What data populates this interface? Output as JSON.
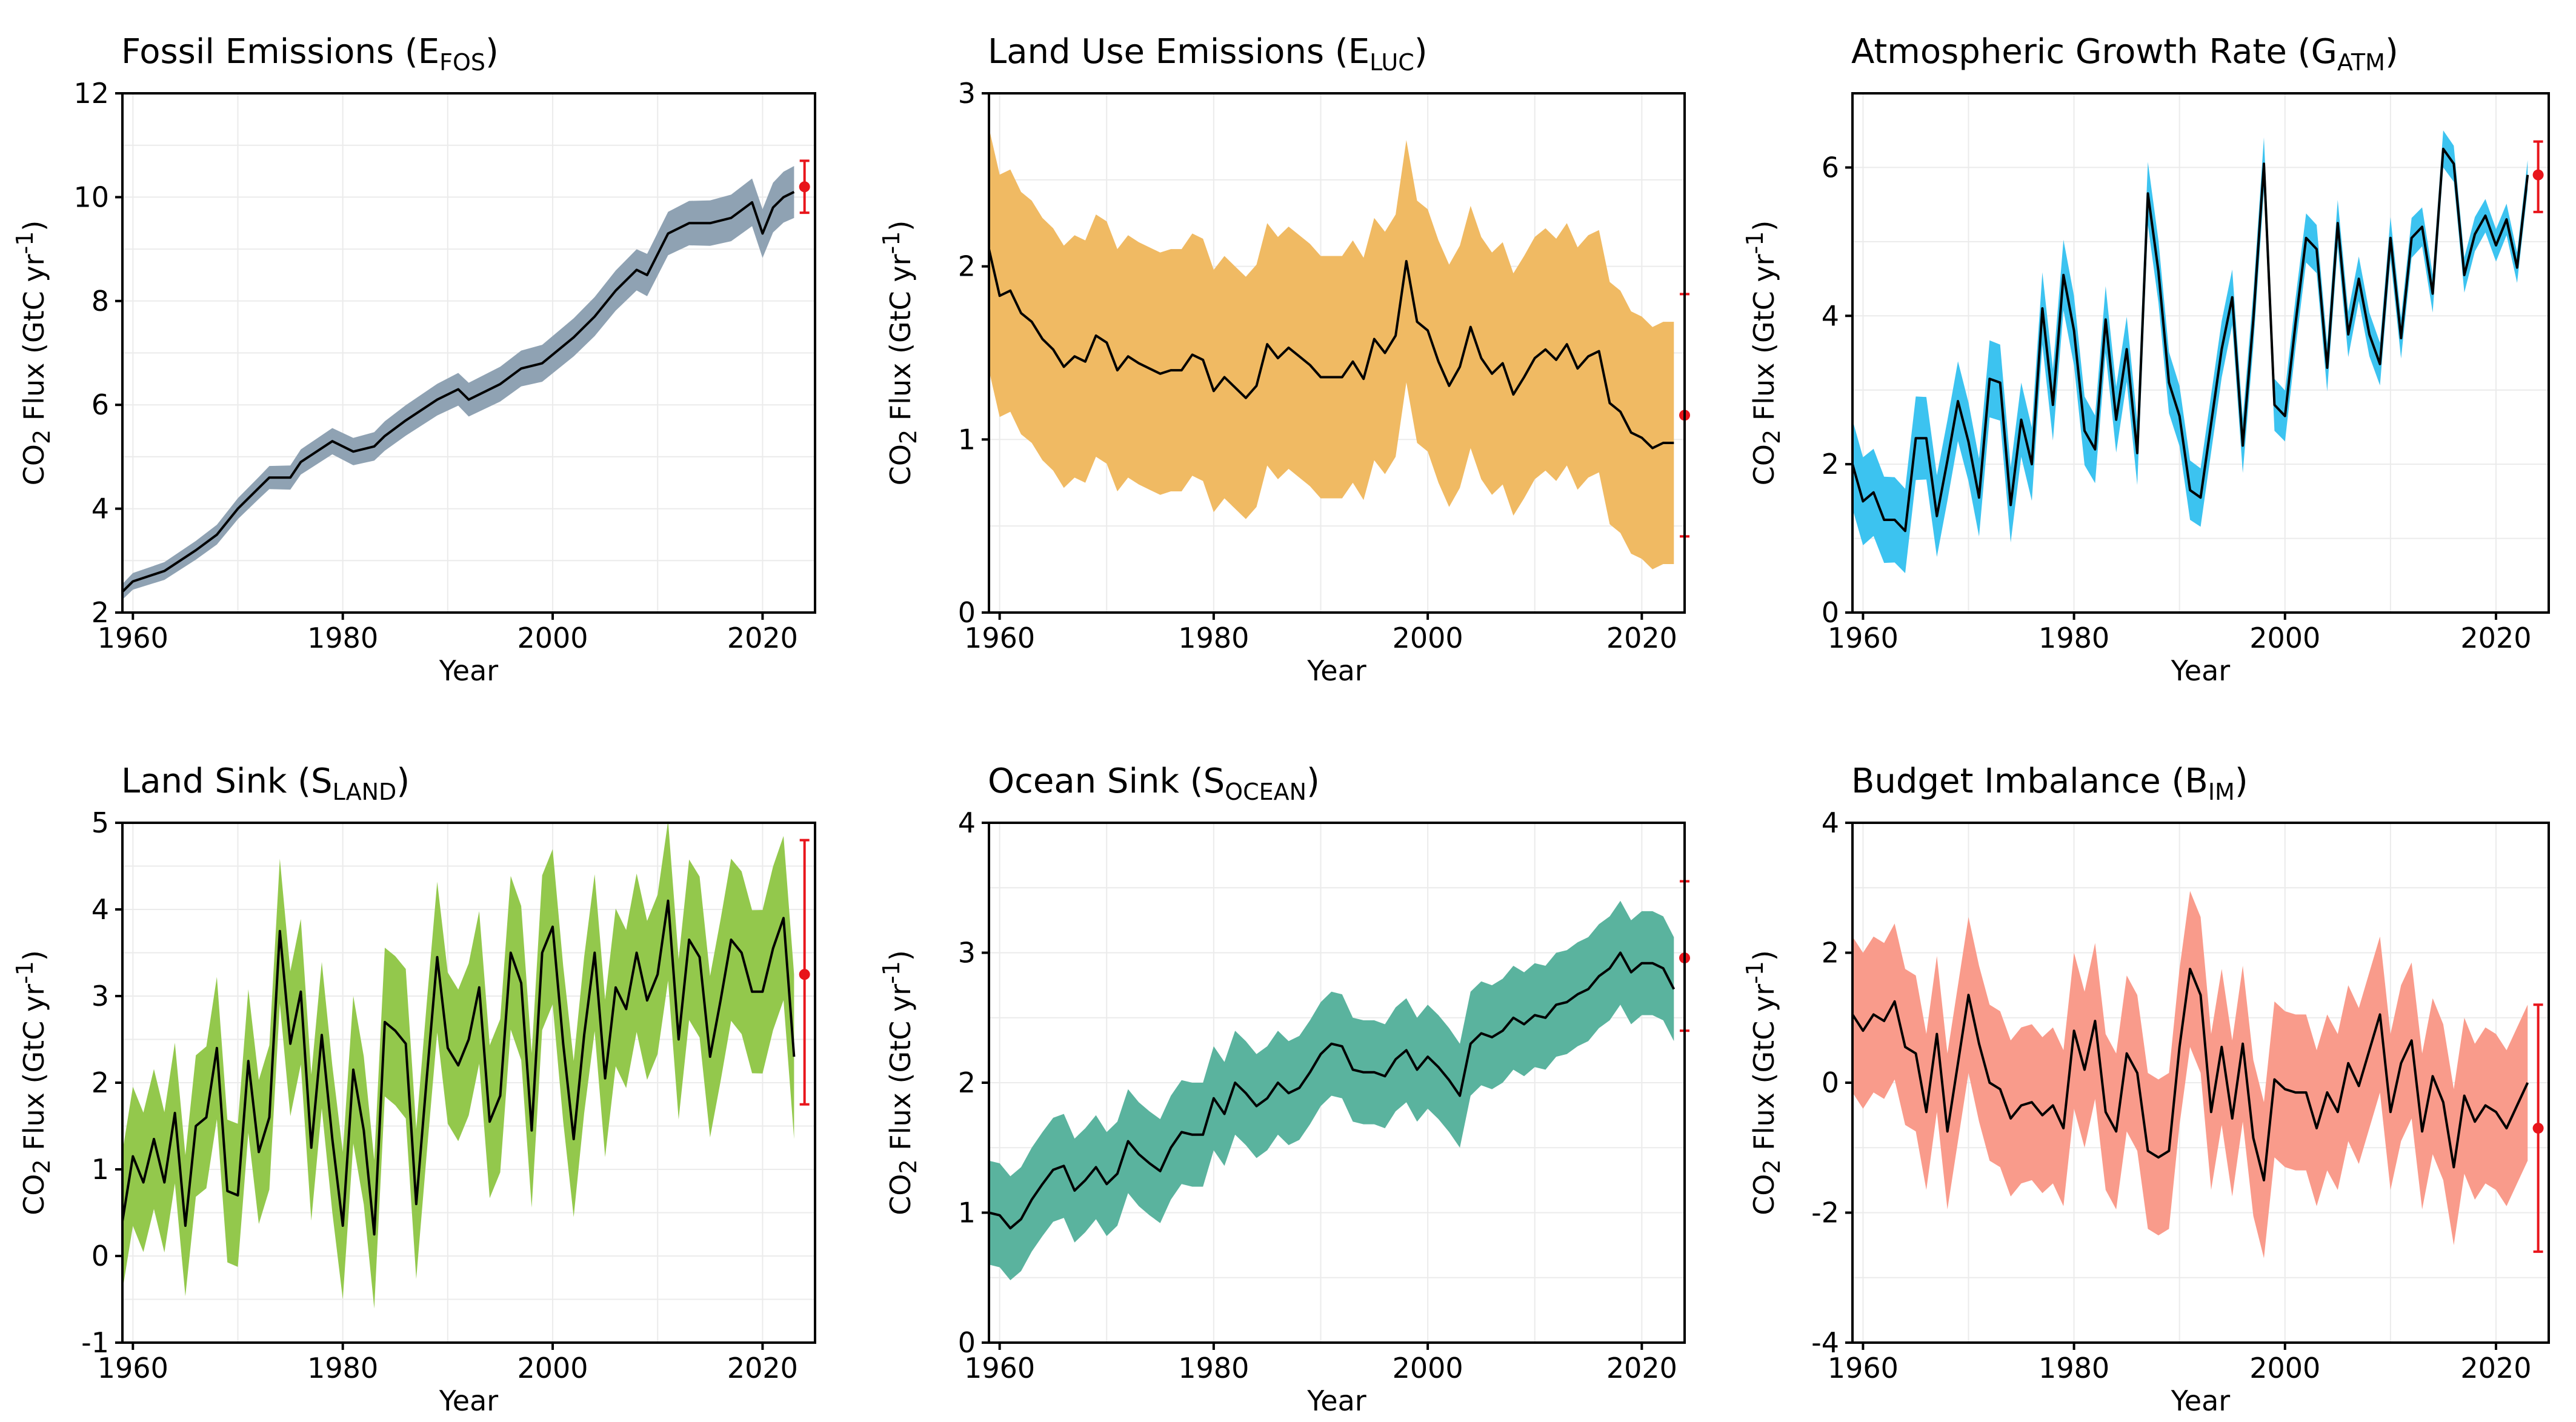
{
  "chart_data": [
    {
      "type": "line",
      "title": "Fossil Emissions (E",
      "title_sub": "FOS",
      "title_end": ")",
      "xlabel": "Year",
      "ylabel": "CO",
      "ylabel_sub": "2",
      "ylabel_mid": " Flux (GtC yr",
      "ylabel_sup": "-1",
      "ylabel_end": ")",
      "xlim": [
        1959,
        2025
      ],
      "ylim": [
        2,
        12
      ],
      "xticks": [
        1960,
        1980,
        2000,
        2020
      ],
      "yticks": [
        2,
        4,
        6,
        8,
        10,
        12
      ],
      "ytick_labels": [
        "2",
        "4",
        "6",
        "8",
        "10",
        "12"
      ],
      "grid": true,
      "band_color": "#8fa2b3",
      "band_halfwidth": [
        0.15,
        0.5
      ],
      "series": [
        {
          "x": [
            1959,
            1960,
            1963,
            1966,
            1968,
            1970,
            1972,
            1973,
            1975,
            1976,
            1979,
            1981,
            1983,
            1984,
            1986,
            1989,
            1991,
            1992,
            1995,
            1997,
            1999,
            2002,
            2004,
            2006,
            2008,
            2009,
            2011,
            2013,
            2015,
            2017,
            2019,
            2020,
            2021,
            2022,
            2023
          ],
          "y": [
            2.4,
            2.6,
            2.8,
            3.2,
            3.5,
            4.0,
            4.4,
            4.6,
            4.6,
            4.9,
            5.3,
            5.1,
            5.2,
            5.4,
            5.7,
            6.1,
            6.3,
            6.1,
            6.4,
            6.7,
            6.8,
            7.3,
            7.7,
            8.2,
            8.6,
            8.5,
            9.3,
            9.5,
            9.5,
            9.6,
            9.9,
            9.3,
            9.8,
            10.0,
            10.1
          ]
        }
      ],
      "estimate": {
        "x": 2024,
        "y": 10.2,
        "low": 9.7,
        "high": 10.7
      }
    },
    {
      "type": "line",
      "title": "Land Use Emissions (E",
      "title_sub": "LUC",
      "title_end": ")",
      "xlabel": "Year",
      "ylabel": "CO",
      "ylabel_sub": "2",
      "ylabel_mid": " Flux (GtC yr",
      "ylabel_sup": "-1",
      "ylabel_end": ")",
      "xlim": [
        1959,
        2024
      ],
      "ylim": [
        0,
        3
      ],
      "xticks": [
        1960,
        1980,
        2000,
        2020
      ],
      "yticks": [
        0,
        1,
        2,
        3
      ],
      "ytick_labels": [
        "0",
        "1",
        "2",
        "3"
      ],
      "grid": true,
      "band_color": "#f0ba63",
      "band_halfwidth": [
        0.7,
        0.7
      ],
      "series": [
        {
          "x": [
            1959,
            1960,
            1961,
            1962,
            1963,
            1964,
            1965,
            1966,
            1967,
            1968,
            1969,
            1970,
            1971,
            1972,
            1973,
            1974,
            1975,
            1976,
            1977,
            1978,
            1979,
            1980,
            1981,
            1982,
            1983,
            1984,
            1985,
            1986,
            1987,
            1988,
            1989,
            1990,
            1991,
            1992,
            1993,
            1994,
            1995,
            1996,
            1997,
            1998,
            1999,
            2000,
            2001,
            2002,
            2003,
            2004,
            2005,
            2006,
            2007,
            2008,
            2009,
            2010,
            2011,
            2012,
            2013,
            2014,
            2015,
            2016,
            2017,
            2018,
            2019,
            2020,
            2021,
            2022,
            2023
          ],
          "y": [
            2.1,
            1.83,
            1.86,
            1.73,
            1.68,
            1.58,
            1.52,
            1.42,
            1.48,
            1.45,
            1.6,
            1.56,
            1.4,
            1.48,
            1.44,
            1.41,
            1.38,
            1.4,
            1.4,
            1.49,
            1.46,
            1.28,
            1.36,
            1.3,
            1.24,
            1.31,
            1.55,
            1.47,
            1.53,
            1.48,
            1.43,
            1.36,
            1.36,
            1.36,
            1.45,
            1.35,
            1.58,
            1.5,
            1.6,
            2.03,
            1.68,
            1.63,
            1.45,
            1.31,
            1.42,
            1.65,
            1.47,
            1.38,
            1.44,
            1.26,
            1.36,
            1.47,
            1.52,
            1.46,
            1.55,
            1.41,
            1.48,
            1.51,
            1.21,
            1.16,
            1.04,
            1.01,
            0.95,
            0.98,
            0.98
          ]
        }
      ],
      "estimate": {
        "x": 2024,
        "y": 1.14,
        "low": 0.44,
        "high": 1.84
      }
    },
    {
      "type": "line",
      "title": "Atmospheric Growth Rate (G",
      "title_sub": "ATM",
      "title_end": ")",
      "xlabel": "Year",
      "ylabel": "CO",
      "ylabel_sub": "2",
      "ylabel_mid": " Flux (GtC yr",
      "ylabel_sup": "-1",
      "ylabel_end": ")",
      "xlim": [
        1959,
        2025
      ],
      "ylim": [
        0,
        7
      ],
      "xticks": [
        1960,
        1980,
        2000,
        2020
      ],
      "yticks": [
        0,
        2,
        4,
        6
      ],
      "ytick_labels": [
        "0",
        "2",
        "4",
        "6"
      ],
      "grid": true,
      "band_color": "#3cc3f0",
      "band_halfwidth": [
        0.6,
        0.2
      ],
      "series": [
        {
          "x": [
            1959,
            1960,
            1961,
            1962,
            1963,
            1964,
            1965,
            1966,
            1967,
            1968,
            1969,
            1970,
            1971,
            1972,
            1973,
            1974,
            1975,
            1976,
            1977,
            1978,
            1979,
            1980,
            1981,
            1982,
            1983,
            1984,
            1985,
            1986,
            1987,
            1988,
            1989,
            1990,
            1991,
            1992,
            1993,
            1994,
            1995,
            1996,
            1997,
            1998,
            1999,
            2000,
            2001,
            2002,
            2003,
            2004,
            2005,
            2006,
            2007,
            2008,
            2009,
            2010,
            2011,
            2012,
            2013,
            2014,
            2015,
            2016,
            2017,
            2018,
            2019,
            2020,
            2021,
            2022,
            2023
          ],
          "y": [
            2.0,
            1.5,
            1.62,
            1.25,
            1.25,
            1.1,
            2.35,
            2.35,
            1.3,
            2.05,
            2.85,
            2.3,
            1.55,
            3.15,
            3.1,
            1.45,
            2.6,
            2.0,
            4.1,
            2.8,
            4.55,
            3.8,
            2.45,
            2.2,
            3.95,
            2.6,
            3.55,
            2.15,
            5.65,
            4.6,
            3.1,
            2.65,
            1.65,
            1.55,
            2.55,
            3.55,
            4.25,
            2.25,
            3.95,
            6.05,
            2.8,
            2.65,
            3.9,
            5.05,
            4.9,
            3.3,
            5.25,
            3.75,
            4.5,
            3.75,
            3.35,
            5.05,
            3.7,
            5.05,
            5.2,
            4.3,
            6.25,
            6.05,
            4.55,
            5.1,
            5.35,
            4.95,
            5.3,
            4.65,
            5.9
          ]
        }
      ],
      "estimate": {
        "x": 2024,
        "y": 5.9,
        "low": 5.4,
        "high": 6.35
      }
    },
    {
      "type": "line",
      "title": "Land Sink (S",
      "title_sub": "LAND",
      "title_end": ")",
      "xlabel": "Year",
      "ylabel": "CO",
      "ylabel_sub": "2",
      "ylabel_mid": " Flux (GtC yr",
      "ylabel_sup": "-1",
      "ylabel_end": ")",
      "xlim": [
        1959,
        2025
      ],
      "ylim": [
        -1,
        5
      ],
      "xticks": [
        1960,
        1980,
        2000,
        2020
      ],
      "yticks": [
        -1,
        0,
        1,
        2,
        3,
        4,
        5
      ],
      "ytick_labels": [
        "-1",
        "0",
        "1",
        "2",
        "3",
        "4",
        "5"
      ],
      "grid": true,
      "band_color": "#93c84c",
      "band_halfwidth": [
        0.8,
        0.95
      ],
      "series": [
        {
          "x": [
            1959,
            1960,
            1961,
            1962,
            1963,
            1964,
            1965,
            1966,
            1967,
            1968,
            1969,
            1970,
            1971,
            1972,
            1973,
            1974,
            1975,
            1976,
            1977,
            1978,
            1979,
            1980,
            1981,
            1982,
            1983,
            1984,
            1985,
            1986,
            1987,
            1988,
            1989,
            1990,
            1991,
            1992,
            1993,
            1994,
            1995,
            1996,
            1997,
            1998,
            1999,
            2000,
            2001,
            2002,
            2003,
            2004,
            2005,
            2006,
            2007,
            2008,
            2009,
            2010,
            2011,
            2012,
            2013,
            2014,
            2015,
            2016,
            2017,
            2018,
            2019,
            2020,
            2021,
            2022,
            2023
          ],
          "y": [
            0.4,
            1.15,
            0.85,
            1.35,
            0.85,
            1.65,
            0.35,
            1.5,
            1.6,
            2.4,
            0.75,
            0.7,
            2.25,
            1.2,
            1.6,
            3.75,
            2.45,
            3.05,
            1.25,
            2.55,
            1.35,
            0.35,
            2.15,
            1.45,
            0.25,
            2.7,
            2.6,
            2.45,
            0.6,
            2.05,
            3.45,
            2.4,
            2.2,
            2.5,
            3.1,
            1.55,
            1.85,
            3.5,
            3.15,
            1.45,
            3.5,
            3.8,
            2.45,
            1.35,
            2.55,
            3.5,
            2.05,
            3.1,
            2.85,
            3.5,
            2.95,
            3.25,
            4.1,
            2.5,
            3.65,
            3.45,
            2.3,
            2.95,
            3.65,
            3.5,
            3.05,
            3.05,
            3.55,
            3.9,
            2.3
          ]
        }
      ],
      "estimate": {
        "x": 2024,
        "y": 3.25,
        "low": 1.75,
        "high": 4.8
      }
    },
    {
      "type": "line",
      "title": "Ocean Sink (S",
      "title_sub": "OCEAN",
      "title_end": ")",
      "xlabel": "Year",
      "ylabel": "CO",
      "ylabel_sub": "2",
      "ylabel_mid": " Flux (GtC yr",
      "ylabel_sup": "-1",
      "ylabel_end": ")",
      "xlim": [
        1959,
        2024
      ],
      "ylim": [
        0,
        4
      ],
      "xticks": [
        1960,
        1980,
        2000,
        2020
      ],
      "yticks": [
        0,
        1,
        2,
        3,
        4
      ],
      "ytick_labels": [
        "0",
        "1",
        "2",
        "3",
        "4"
      ],
      "grid": true,
      "band_color": "#5ab39e",
      "band_halfwidth": [
        0.4,
        0.4
      ],
      "series": [
        {
          "x": [
            1959,
            1960,
            1961,
            1962,
            1963,
            1964,
            1965,
            1966,
            1967,
            1968,
            1969,
            1970,
            1971,
            1972,
            1973,
            1974,
            1975,
            1976,
            1977,
            1978,
            1979,
            1980,
            1981,
            1982,
            1983,
            1984,
            1985,
            1986,
            1987,
            1988,
            1989,
            1990,
            1991,
            1992,
            1993,
            1994,
            1995,
            1996,
            1997,
            1998,
            1999,
            2000,
            2001,
            2002,
            2003,
            2004,
            2005,
            2006,
            2007,
            2008,
            2009,
            2010,
            2011,
            2012,
            2013,
            2014,
            2015,
            2016,
            2017,
            2018,
            2019,
            2020,
            2021,
            2022,
            2023
          ],
          "y": [
            1.0,
            0.98,
            0.88,
            0.95,
            1.1,
            1.22,
            1.33,
            1.36,
            1.17,
            1.25,
            1.35,
            1.22,
            1.3,
            1.55,
            1.45,
            1.38,
            1.32,
            1.5,
            1.62,
            1.6,
            1.6,
            1.88,
            1.76,
            2.0,
            1.92,
            1.82,
            1.88,
            2.0,
            1.92,
            1.96,
            2.08,
            2.22,
            2.3,
            2.28,
            2.1,
            2.08,
            2.08,
            2.05,
            2.18,
            2.25,
            2.1,
            2.2,
            2.12,
            2.02,
            1.9,
            2.3,
            2.38,
            2.35,
            2.4,
            2.5,
            2.45,
            2.52,
            2.5,
            2.6,
            2.62,
            2.68,
            2.72,
            2.82,
            2.88,
            3.0,
            2.85,
            2.92,
            2.92,
            2.88,
            2.72
          ]
        }
      ],
      "estimate": {
        "x": 2024,
        "y": 2.96,
        "low": 2.4,
        "high": 3.55
      }
    },
    {
      "type": "line",
      "title": "Budget Imbalance (B",
      "title_sub": "IM",
      "title_end": ")",
      "xlabel": "Year",
      "ylabel": "CO",
      "ylabel_sub": "2",
      "ylabel_mid": " Flux (GtC yr",
      "ylabel_sup": "-1",
      "ylabel_end": ")",
      "xlim": [
        1959,
        2025
      ],
      "ylim": [
        -4,
        4
      ],
      "xticks": [
        1960,
        1980,
        2000,
        2020
      ],
      "yticks": [
        -4,
        -2,
        0,
        2,
        4
      ],
      "ytick_labels": [
        "-4",
        "-2",
        "0",
        "2",
        "4"
      ],
      "grid": true,
      "band_color": "#f99b8b",
      "band_halfwidth": [
        1.2,
        1.2
      ],
      "series": [
        {
          "x": [
            1959,
            1960,
            1961,
            1962,
            1963,
            1964,
            1965,
            1966,
            1967,
            1968,
            1969,
            1970,
            1971,
            1972,
            1973,
            1974,
            1975,
            1976,
            1977,
            1978,
            1979,
            1980,
            1981,
            1982,
            1983,
            1984,
            1985,
            1986,
            1987,
            1988,
            1989,
            1990,
            1991,
            1992,
            1993,
            1994,
            1995,
            1996,
            1997,
            1998,
            1999,
            2000,
            2001,
            2002,
            2003,
            2004,
            2005,
            2006,
            2007,
            2008,
            2009,
            2010,
            2011,
            2012,
            2013,
            2014,
            2015,
            2016,
            2017,
            2018,
            2019,
            2020,
            2021,
            2022,
            2023
          ],
          "y": [
            1.05,
            0.8,
            1.05,
            0.95,
            1.25,
            0.55,
            0.45,
            -0.45,
            0.75,
            -0.75,
            0.3,
            1.35,
            0.6,
            0.0,
            -0.1,
            -0.55,
            -0.35,
            -0.3,
            -0.5,
            -0.35,
            -0.7,
            0.8,
            0.2,
            0.95,
            -0.45,
            -0.75,
            0.45,
            0.15,
            -1.05,
            -1.15,
            -1.05,
            0.55,
            1.75,
            1.35,
            -0.45,
            0.55,
            -0.55,
            0.6,
            -0.85,
            -1.5,
            0.05,
            -0.1,
            -0.15,
            -0.15,
            -0.7,
            -0.15,
            -0.45,
            0.3,
            -0.05,
            0.5,
            1.05,
            -0.45,
            0.3,
            0.65,
            -0.75,
            0.1,
            -0.3,
            -1.3,
            -0.2,
            -0.6,
            -0.35,
            -0.45,
            -0.7,
            -0.35,
            0.0
          ]
        }
      ],
      "estimate": {
        "x": 2024,
        "y": -0.7,
        "low": -2.6,
        "high": 1.2
      }
    }
  ]
}
